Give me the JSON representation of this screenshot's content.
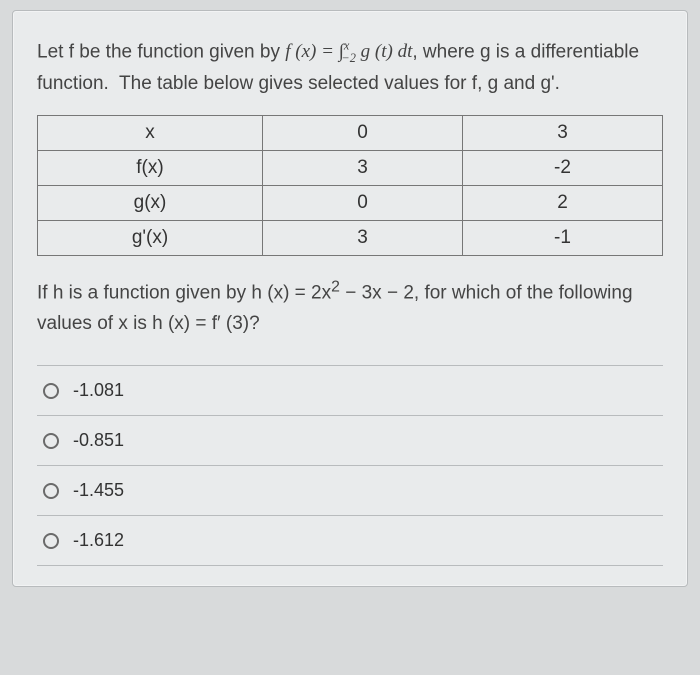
{
  "prompt_html": "Let f be the function given by <span class='math'>f&nbsp;(x) = <span class='int'>&#8747;</span><span class='sup'>x</span><span class='sub' style='margin-left:-8px'>&minus;2</span>&nbsp;g&nbsp;(t)&nbsp;dt</span>, where g is a differentiable function.&nbsp; The table below gives selected values for f, g and g'.",
  "table": {
    "rows": [
      {
        "label": "x",
        "c0": "0",
        "c1": "3"
      },
      {
        "label": "f(x)",
        "c0": "3",
        "c1": "-2"
      },
      {
        "label": "g(x)",
        "c0": "0",
        "c1": "2"
      },
      {
        "label": "g'(x)",
        "c0": "3",
        "c1": "-1"
      }
    ],
    "border_color": "#777",
    "font_size": 19
  },
  "question2_html": "If h is a function given by <span class='math'>h&nbsp;(x) = 2x<span style='font-style:normal'><sup>2</sup></span> &minus; 3x &minus; 2</span>, for which of the following values of x is <span class='math'>h&nbsp;(x) = f&prime;&nbsp;(3)</span>?",
  "options": [
    {
      "label": "-1.081"
    },
    {
      "label": "-0.851"
    },
    {
      "label": "-1.455"
    },
    {
      "label": "-1.612"
    }
  ],
  "colors": {
    "page_bg": "#d8dadb",
    "card_bg": "#e9ebec",
    "card_border": "#b8bbbd",
    "text": "#3a3a3a",
    "divider": "#b8bbbd",
    "radio_border": "#6a6a6a"
  }
}
